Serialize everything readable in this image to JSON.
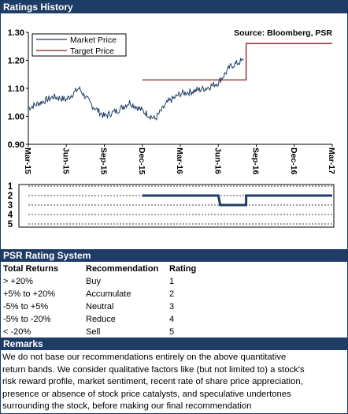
{
  "ratings_history": {
    "header": "Ratings History",
    "source": "Source: Bloomberg, PSR"
  },
  "chart_data": [
    {
      "type": "line",
      "source": "Source: Bloomberg, PSR",
      "ylim": [
        0.9,
        1.3
      ],
      "yticks": [
        "1.30",
        "1.20",
        "1.10",
        "1.00",
        "0.90"
      ],
      "xticks": [
        "Mar-15",
        "Jun-15",
        "Sep-15",
        "Dec-15",
        "Mar-16",
        "Jun-16",
        "Sep-16",
        "Dec-16",
        "Mar-17"
      ],
      "legend": [
        "Market Price",
        "Target Price"
      ],
      "legend_position": "top-left",
      "colors": {
        "market": "#1f3c66",
        "target": "#8b1a1a"
      },
      "series": [
        {
          "name": "Market Price",
          "x": [
            "Mar-15",
            "Apr-15",
            "May-15",
            "Jun-15",
            "Jul-15",
            "Aug-15",
            "Sep-15",
            "Oct-15",
            "Nov-15",
            "Dec-15",
            "Jan-16",
            "Feb-16",
            "Mar-16",
            "Apr-16",
            "May-16",
            "Jun-16",
            "Jul-16",
            "Aug-16"
          ],
          "values": [
            1.03,
            1.05,
            1.07,
            1.06,
            1.1,
            1.04,
            1.0,
            1.02,
            1.05,
            1.02,
            0.99,
            1.05,
            1.08,
            1.09,
            1.1,
            1.12,
            1.18,
            1.2
          ]
        },
        {
          "name": "Target Price",
          "x": [
            "Dec-15",
            "Aug-16",
            "Aug-16",
            "Mar-17"
          ],
          "values": [
            1.13,
            1.13,
            1.26,
            1.26
          ]
        }
      ]
    },
    {
      "type": "line",
      "yticks": [
        "1",
        "2",
        "3",
        "4",
        "5"
      ],
      "series": [
        {
          "name": "Rating",
          "x": [
            "Dec-15",
            "Jun-16",
            "Jun-16",
            "Aug-16",
            "Aug-16",
            "Mar-17"
          ],
          "values": [
            2,
            2,
            3,
            3,
            2,
            2
          ]
        }
      ]
    }
  ],
  "psr_rating_system": {
    "header": "PSR Rating System",
    "columns": [
      "Total Returns",
      "Recommendation",
      "Rating"
    ],
    "rows": [
      [
        "> +20%",
        "Buy",
        "1"
      ],
      [
        "+5% to +20%",
        "Accumulate",
        "2"
      ],
      [
        "-5% to +5%",
        "Neutral",
        "3"
      ],
      [
        "-5% to -20%",
        "Reduce",
        "4"
      ],
      [
        "< -20%",
        "Sell",
        "5"
      ]
    ]
  },
  "remarks": {
    "header": "Remarks",
    "lines": [
      "We do not base our recommendations entirely on the  above quantitative",
      "return bands.  We consider qualitative factors like (but not limited to) a stock's",
      "risk reward profile, market sentiment, recent rate of share price appreciation,",
      "presence or absence of stock price catalysts, and speculative undertones",
      "surrounding the stock, before making our final recommendation"
    ]
  }
}
